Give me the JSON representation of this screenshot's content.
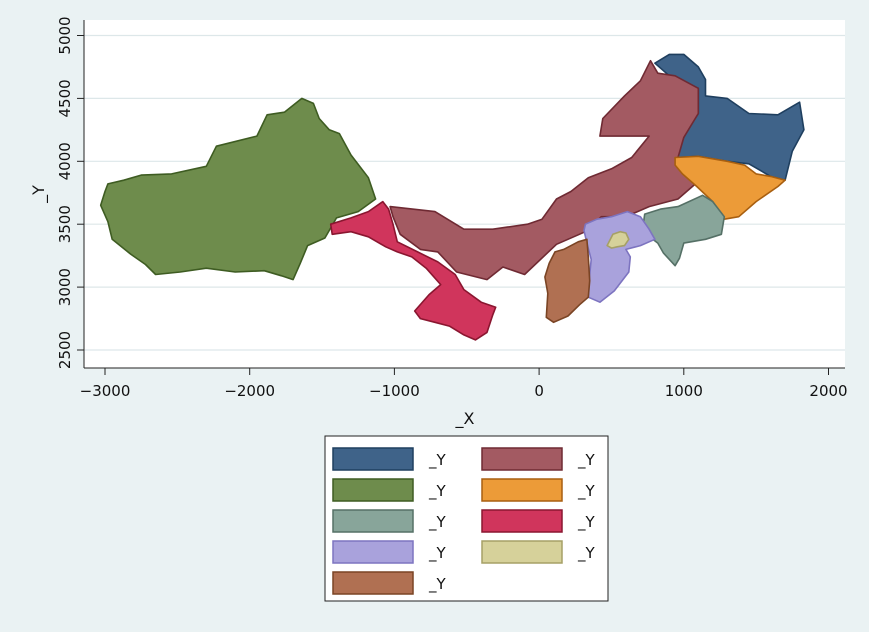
{
  "chart_data": {
    "type": "map",
    "xlabel": "_X",
    "ylabel": "_Y",
    "xlim": [
      -3100,
      2100
    ],
    "ylim": [
      2450,
      5100
    ],
    "x_ticks": [
      -3000,
      -2000,
      -1000,
      0,
      1000,
      2000
    ],
    "x_tick_labels": [
      "−3000",
      "−2000",
      "−1000",
      "0",
      "1000",
      "2000"
    ],
    "y_ticks": [
      2500,
      3000,
      3500,
      4000,
      4500,
      5000
    ],
    "y_tick_labels": [
      "2500",
      "3000",
      "3500",
      "4000",
      "4500",
      "5000"
    ],
    "grid": true,
    "legend_position": "bottom",
    "regions": [
      {
        "label": "_Y",
        "fill": "#3f6389",
        "stroke": "#1f3f5f",
        "polygon": [
          [
            800,
            4780
          ],
          [
            900,
            4850
          ],
          [
            1000,
            4850
          ],
          [
            1100,
            4750
          ],
          [
            1150,
            4650
          ],
          [
            1150,
            4520
          ],
          [
            1300,
            4500
          ],
          [
            1450,
            4380
          ],
          [
            1650,
            4370
          ],
          [
            1800,
            4470
          ],
          [
            1830,
            4250
          ],
          [
            1750,
            4080
          ],
          [
            1700,
            3850
          ],
          [
            1600,
            3880
          ],
          [
            1450,
            3980
          ],
          [
            1300,
            4000
          ],
          [
            1100,
            4040
          ],
          [
            940,
            4030
          ],
          [
            990,
            4190
          ],
          [
            1100,
            4380
          ],
          [
            1100,
            4580
          ],
          [
            900,
            4680
          ]
        ]
      },
      {
        "label": "_Y",
        "fill": "#a35a62",
        "stroke": "#6f2a33",
        "polygon": [
          [
            -1030,
            3640
          ],
          [
            -720,
            3600
          ],
          [
            -520,
            3460
          ],
          [
            -320,
            3460
          ],
          [
            -80,
            3500
          ],
          [
            20,
            3540
          ],
          [
            120,
            3700
          ],
          [
            220,
            3760
          ],
          [
            340,
            3870
          ],
          [
            500,
            3940
          ],
          [
            640,
            4030
          ],
          [
            760,
            4200
          ],
          [
            540,
            4200
          ],
          [
            420,
            4200
          ],
          [
            440,
            4340
          ],
          [
            590,
            4520
          ],
          [
            700,
            4640
          ],
          [
            770,
            4800
          ],
          [
            820,
            4700
          ],
          [
            940,
            4680
          ],
          [
            1100,
            4580
          ],
          [
            1100,
            4380
          ],
          [
            1000,
            4190
          ],
          [
            960,
            4030
          ],
          [
            1080,
            4010
          ],
          [
            1120,
            3860
          ],
          [
            960,
            3700
          ],
          [
            760,
            3640
          ],
          [
            600,
            3560
          ],
          [
            430,
            3560
          ],
          [
            320,
            3440
          ],
          [
            120,
            3340
          ],
          [
            -100,
            3100
          ],
          [
            -250,
            3160
          ],
          [
            -360,
            3060
          ],
          [
            -570,
            3120
          ],
          [
            -700,
            3280
          ],
          [
            -820,
            3300
          ],
          [
            -960,
            3420
          ],
          [
            -1010,
            3560
          ]
        ]
      },
      {
        "label": "_Y",
        "fill": "#6e8c4c",
        "stroke": "#3e5c22",
        "polygon": [
          [
            -2980,
            3820
          ],
          [
            -2870,
            3850
          ],
          [
            -2750,
            3890
          ],
          [
            -2540,
            3900
          ],
          [
            -2300,
            3960
          ],
          [
            -2230,
            4120
          ],
          [
            -1950,
            4200
          ],
          [
            -1880,
            4370
          ],
          [
            -1760,
            4390
          ],
          [
            -1640,
            4500
          ],
          [
            -1560,
            4460
          ],
          [
            -1520,
            4340
          ],
          [
            -1450,
            4250
          ],
          [
            -1380,
            4220
          ],
          [
            -1300,
            4050
          ],
          [
            -1180,
            3870
          ],
          [
            -1130,
            3700
          ],
          [
            -1250,
            3600
          ],
          [
            -1400,
            3550
          ],
          [
            -1480,
            3390
          ],
          [
            -1600,
            3330
          ],
          [
            -1650,
            3190
          ],
          [
            -1700,
            3060
          ],
          [
            -1780,
            3090
          ],
          [
            -1900,
            3130
          ],
          [
            -2100,
            3120
          ],
          [
            -2300,
            3150
          ],
          [
            -2480,
            3120
          ],
          [
            -2650,
            3100
          ],
          [
            -2720,
            3180
          ],
          [
            -2820,
            3260
          ],
          [
            -2950,
            3380
          ],
          [
            -2980,
            3520
          ],
          [
            -3030,
            3650
          ],
          [
            -3000,
            3760
          ]
        ]
      },
      {
        "label": "_Y",
        "fill": "#ec9b38",
        "stroke": "#a85f10",
        "polygon": [
          [
            940,
            4030
          ],
          [
            1100,
            4040
          ],
          [
            1300,
            4000
          ],
          [
            1420,
            3970
          ],
          [
            1500,
            3900
          ],
          [
            1600,
            3880
          ],
          [
            1700,
            3850
          ],
          [
            1650,
            3800
          ],
          [
            1500,
            3680
          ],
          [
            1380,
            3560
          ],
          [
            1280,
            3540
          ],
          [
            1200,
            3680
          ],
          [
            1090,
            3800
          ],
          [
            990,
            3900
          ],
          [
            940,
            3970
          ]
        ]
      },
      {
        "label": "_Y",
        "fill": "#88a59a",
        "stroke": "#557066",
        "polygon": [
          [
            730,
            3580
          ],
          [
            840,
            3620
          ],
          [
            960,
            3640
          ],
          [
            1130,
            3730
          ],
          [
            1200,
            3680
          ],
          [
            1280,
            3560
          ],
          [
            1260,
            3420
          ],
          [
            1150,
            3380
          ],
          [
            1000,
            3350
          ],
          [
            970,
            3230
          ],
          [
            940,
            3170
          ],
          [
            860,
            3270
          ],
          [
            820,
            3350
          ],
          [
            740,
            3420
          ],
          [
            720,
            3500
          ]
        ]
      },
      {
        "label": "_Y",
        "fill": "#d0355c",
        "stroke": "#8a1630",
        "polygon": [
          [
            -1440,
            3500
          ],
          [
            -1300,
            3550
          ],
          [
            -1180,
            3600
          ],
          [
            -1080,
            3680
          ],
          [
            -1040,
            3620
          ],
          [
            -1010,
            3500
          ],
          [
            -980,
            3360
          ],
          [
            -840,
            3280
          ],
          [
            -700,
            3200
          ],
          [
            -580,
            3100
          ],
          [
            -520,
            2980
          ],
          [
            -400,
            2880
          ],
          [
            -300,
            2840
          ],
          [
            -320,
            2780
          ],
          [
            -360,
            2640
          ],
          [
            -440,
            2580
          ],
          [
            -520,
            2620
          ],
          [
            -620,
            2690
          ],
          [
            -720,
            2720
          ],
          [
            -820,
            2750
          ],
          [
            -860,
            2810
          ],
          [
            -760,
            2940
          ],
          [
            -680,
            3020
          ],
          [
            -780,
            3150
          ],
          [
            -880,
            3240
          ],
          [
            -980,
            3280
          ],
          [
            -1060,
            3320
          ],
          [
            -1180,
            3400
          ],
          [
            -1300,
            3440
          ],
          [
            -1430,
            3420
          ]
        ]
      },
      {
        "label": "_Y",
        "fill": "#a9a2dc",
        "stroke": "#7d74c0",
        "polygon": [
          [
            320,
            3500
          ],
          [
            400,
            3540
          ],
          [
            500,
            3560
          ],
          [
            610,
            3600
          ],
          [
            700,
            3560
          ],
          [
            760,
            3460
          ],
          [
            800,
            3380
          ],
          [
            700,
            3330
          ],
          [
            600,
            3300
          ],
          [
            630,
            3240
          ],
          [
            620,
            3120
          ],
          [
            520,
            2970
          ],
          [
            420,
            2880
          ],
          [
            340,
            2920
          ],
          [
            350,
            3100
          ],
          [
            360,
            3220
          ],
          [
            330,
            3350
          ],
          [
            310,
            3450
          ]
        ]
      },
      {
        "label": "_Y",
        "fill": "#d6d19a",
        "stroke": "#a6a066",
        "polygon": [
          [
            470,
            3330
          ],
          [
            510,
            3420
          ],
          [
            560,
            3440
          ],
          [
            600,
            3430
          ],
          [
            620,
            3380
          ],
          [
            590,
            3330
          ],
          [
            540,
            3320
          ],
          [
            500,
            3310
          ]
        ]
      },
      {
        "label": "_Y",
        "fill": "#b07052",
        "stroke": "#7a4424",
        "polygon": [
          [
            70,
            3190
          ],
          [
            110,
            3280
          ],
          [
            170,
            3300
          ],
          [
            270,
            3360
          ],
          [
            330,
            3380
          ],
          [
            340,
            3240
          ],
          [
            350,
            3050
          ],
          [
            340,
            2920
          ],
          [
            280,
            2860
          ],
          [
            200,
            2770
          ],
          [
            100,
            2720
          ],
          [
            50,
            2760
          ],
          [
            60,
            2950
          ],
          [
            40,
            3080
          ]
        ]
      }
    ]
  }
}
